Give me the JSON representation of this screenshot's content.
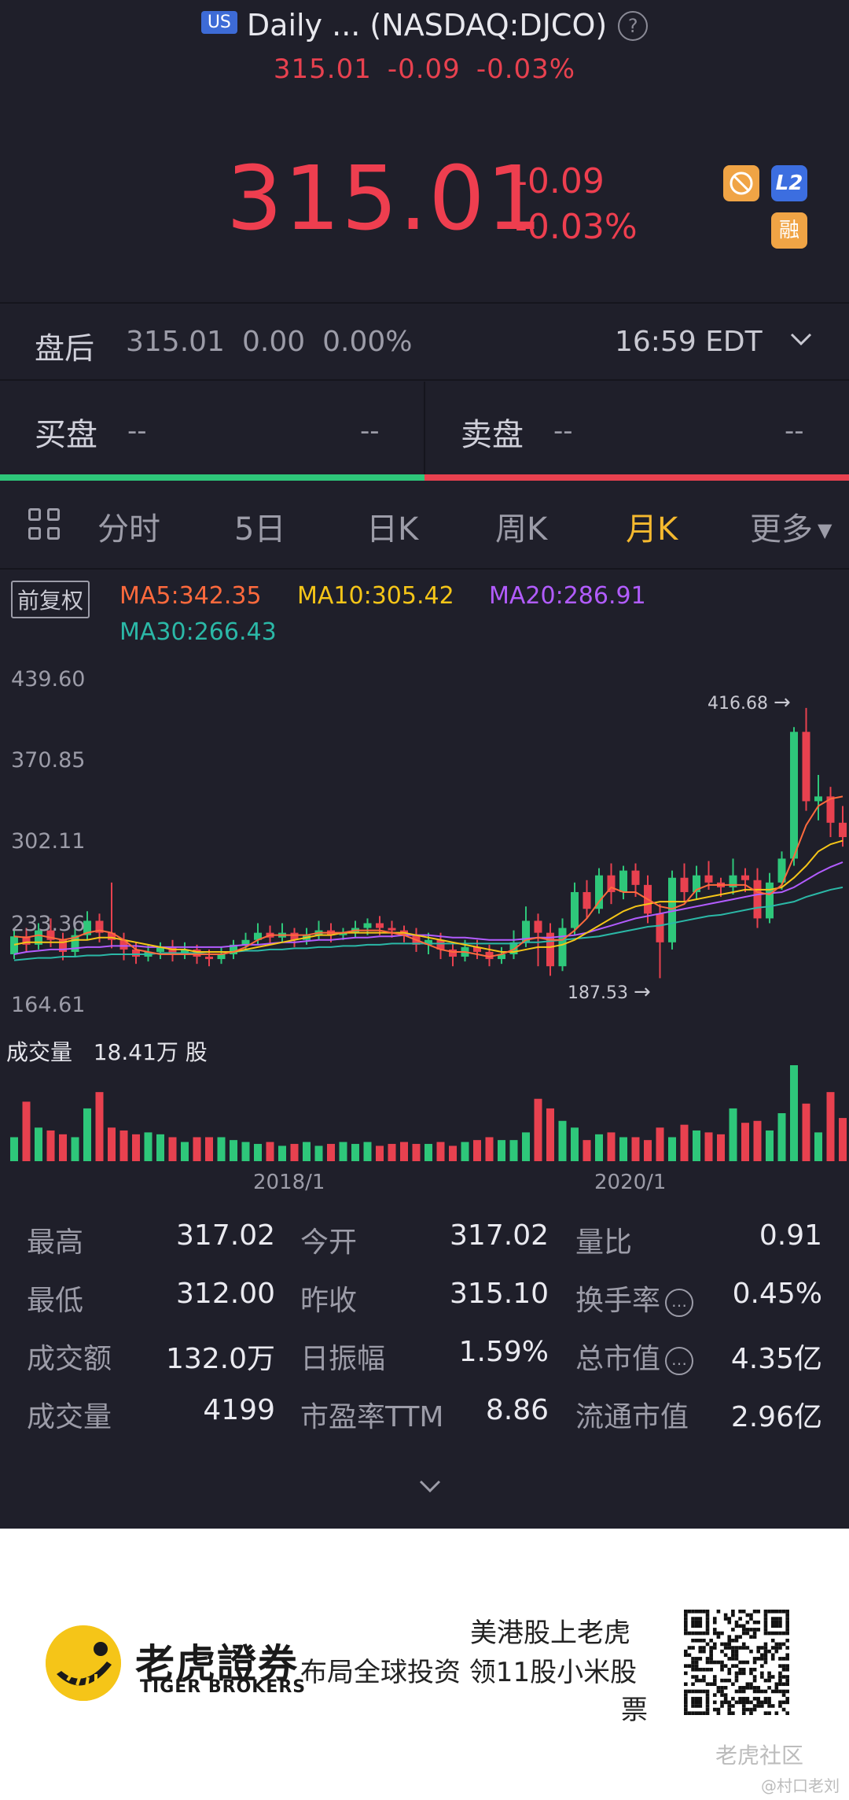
{
  "header": {
    "market_badge": "US",
    "title": "Daily ... (NASDAQ:DJCO)",
    "price": "315.01",
    "change": "-0.09",
    "change_pct": "-0.03%"
  },
  "quote": {
    "price": "315.01",
    "change": "-0.09",
    "change_pct": "-0.03%",
    "badges": {
      "l2": "L2",
      "margin": "融"
    }
  },
  "after_hours": {
    "label": "盘后",
    "price": "315.01",
    "change": "0.00",
    "change_pct": "0.00%",
    "time": "16:59 EDT"
  },
  "order_book": {
    "bid_label": "买盘",
    "bid_left": "--",
    "bid_right": "--",
    "ask_label": "卖盘",
    "ask_left": "--",
    "ask_right": "--"
  },
  "tabs": [
    "分时",
    "5日",
    "日K",
    "周K",
    "月K",
    "更多"
  ],
  "active_tab": "月K",
  "chart_controls": {
    "adjust_label": "前复权",
    "ma5": "MA5:342.35",
    "ma10": "MA10:305.42",
    "ma20": "MA20:286.91",
    "ma30": "MA30:266.43"
  },
  "colors": {
    "up": "#e8414f",
    "down": "#2ec77a",
    "accent": "#f5b92f",
    "ma5": "#ff6a3d",
    "ma10": "#f5c518",
    "ma20": "#b25cff",
    "ma30": "#2bb8a7"
  },
  "volume": {
    "label": "成交量",
    "value": "18.41万 股"
  },
  "chart_data": {
    "type": "candlestick",
    "y_ticks": [
      "439.60",
      "370.85",
      "302.11",
      "233.36",
      "164.61"
    ],
    "ylim": [
      164.61,
      439.6
    ],
    "x_ticks": [
      "2018/1",
      "2020/1"
    ],
    "high_marker": "416.68",
    "low_marker": "187.53",
    "candles": [
      [
        210,
        225,
        206,
        230
      ],
      [
        225,
        218,
        212,
        232
      ],
      [
        218,
        230,
        214,
        236
      ],
      [
        230,
        222,
        216,
        240
      ],
      [
        222,
        212,
        205,
        228
      ],
      [
        212,
        226,
        208,
        232
      ],
      [
        226,
        238,
        222,
        246
      ],
      [
        238,
        228,
        220,
        244
      ],
      [
        228,
        222,
        215,
        270
      ],
      [
        222,
        214,
        205,
        228
      ],
      [
        214,
        208,
        202,
        220
      ],
      [
        208,
        212,
        204,
        218
      ],
      [
        212,
        216,
        206,
        220
      ],
      [
        216,
        210,
        204,
        222
      ],
      [
        210,
        214,
        206,
        220
      ],
      [
        214,
        208,
        202,
        218
      ],
      [
        208,
        206,
        200,
        214
      ],
      [
        206,
        210,
        202,
        216
      ],
      [
        210,
        218,
        206,
        222
      ],
      [
        218,
        222,
        214,
        228
      ],
      [
        222,
        228,
        218,
        236
      ],
      [
        228,
        224,
        218,
        234
      ],
      [
        224,
        228,
        220,
        236
      ],
      [
        228,
        222,
        216,
        232
      ],
      [
        222,
        226,
        218,
        232
      ],
      [
        226,
        230,
        222,
        238
      ],
      [
        230,
        226,
        220,
        236
      ],
      [
        226,
        228,
        222,
        232
      ],
      [
        228,
        232,
        224,
        238
      ],
      [
        232,
        236,
        226,
        240
      ],
      [
        236,
        232,
        226,
        242
      ],
      [
        232,
        230,
        224,
        238
      ],
      [
        230,
        226,
        220,
        234
      ],
      [
        226,
        218,
        212,
        232
      ],
      [
        218,
        222,
        210,
        228
      ],
      [
        222,
        214,
        206,
        228
      ],
      [
        214,
        208,
        200,
        220
      ],
      [
        208,
        216,
        204,
        222
      ],
      [
        216,
        212,
        206,
        222
      ],
      [
        212,
        206,
        200,
        218
      ],
      [
        206,
        210,
        202,
        216
      ],
      [
        210,
        220,
        206,
        230
      ],
      [
        220,
        238,
        216,
        250
      ],
      [
        238,
        228,
        200,
        244
      ],
      [
        228,
        200,
        192,
        236
      ],
      [
        200,
        232,
        196,
        240
      ],
      [
        232,
        262,
        226,
        270
      ],
      [
        262,
        248,
        240,
        272
      ],
      [
        248,
        276,
        244,
        282
      ],
      [
        276,
        262,
        252,
        286
      ],
      [
        262,
        280,
        256,
        284
      ],
      [
        280,
        268,
        258,
        286
      ],
      [
        268,
        244,
        236,
        276
      ],
      [
        244,
        220,
        190,
        252
      ],
      [
        220,
        274,
        214,
        280
      ],
      [
        274,
        262,
        254,
        286
      ],
      [
        262,
        276,
        256,
        284
      ],
      [
        276,
        270,
        264,
        288
      ],
      [
        270,
        266,
        258,
        274
      ],
      [
        266,
        276,
        260,
        290
      ],
      [
        276,
        272,
        262,
        282
      ],
      [
        272,
        240,
        232,
        282
      ],
      [
        240,
        270,
        236,
        278
      ],
      [
        270,
        290,
        264,
        296
      ],
      [
        290,
        396,
        284,
        400
      ],
      [
        396,
        338,
        330,
        416
      ],
      [
        338,
        342,
        322,
        360
      ],
      [
        342,
        320,
        308,
        350
      ],
      [
        320,
        308,
        300,
        334
      ]
    ],
    "ma5": [
      225,
      224,
      226,
      224,
      222,
      224,
      228,
      230,
      228,
      222,
      214,
      212,
      210,
      210,
      210,
      210,
      210,
      210,
      212,
      216,
      222,
      226,
      226,
      226,
      226,
      228,
      228,
      228,
      230,
      230,
      230,
      228,
      226,
      222,
      218,
      214,
      212,
      212,
      210,
      208,
      210,
      214,
      222,
      224,
      222,
      222,
      230,
      240,
      254,
      266,
      262,
      262,
      256,
      250,
      248,
      252,
      264,
      268,
      268,
      268,
      268,
      262,
      260,
      268,
      292,
      318,
      334,
      340,
      342
    ],
    "ma10": [
      218,
      220,
      220,
      220,
      220,
      222,
      222,
      224,
      224,
      222,
      220,
      218,
      216,
      214,
      214,
      212,
      212,
      212,
      212,
      214,
      216,
      218,
      220,
      222,
      224,
      226,
      226,
      228,
      228,
      228,
      228,
      228,
      228,
      226,
      224,
      222,
      220,
      218,
      216,
      214,
      212,
      212,
      214,
      216,
      216,
      218,
      222,
      228,
      234,
      240,
      246,
      250,
      252,
      254,
      254,
      254,
      256,
      258,
      260,
      262,
      264,
      264,
      264,
      266,
      274,
      284,
      296,
      302,
      305
    ],
    "ma20": [
      210,
      212,
      213,
      214,
      214,
      215,
      216,
      216,
      217,
      217,
      217,
      216,
      216,
      216,
      216,
      216,
      216,
      216,
      217,
      218,
      218,
      219,
      220,
      220,
      221,
      222,
      222,
      223,
      224,
      224,
      225,
      225,
      226,
      226,
      226,
      225,
      224,
      224,
      223,
      222,
      222,
      222,
      223,
      224,
      224,
      225,
      226,
      228,
      231,
      234,
      237,
      240,
      242,
      244,
      246,
      248,
      250,
      252,
      254,
      256,
      258,
      260,
      261,
      262,
      266,
      272,
      278,
      283,
      287
    ],
    "ma30": [
      205,
      206,
      207,
      207,
      208,
      208,
      209,
      209,
      210,
      210,
      210,
      210,
      211,
      211,
      211,
      211,
      212,
      212,
      212,
      213,
      213,
      214,
      214,
      215,
      215,
      216,
      216,
      217,
      217,
      218,
      218,
      219,
      219,
      219,
      219,
      219,
      219,
      219,
      219,
      219,
      219,
      219,
      220,
      220,
      221,
      222,
      223,
      224,
      225,
      227,
      229,
      231,
      233,
      234,
      236,
      238,
      240,
      242,
      243,
      245,
      247,
      249,
      250,
      252,
      254,
      258,
      261,
      264,
      266
    ],
    "volumes": [
      0.25,
      0.62,
      0.35,
      0.32,
      0.28,
      0.25,
      0.55,
      0.72,
      0.35,
      0.32,
      0.28,
      0.3,
      0.28,
      0.25,
      0.2,
      0.25,
      0.25,
      0.25,
      0.22,
      0.2,
      0.18,
      0.2,
      0.16,
      0.18,
      0.2,
      0.16,
      0.18,
      0.2,
      0.18,
      0.2,
      0.16,
      0.18,
      0.2,
      0.18,
      0.18,
      0.2,
      0.16,
      0.2,
      0.22,
      0.25,
      0.22,
      0.22,
      0.3,
      0.65,
      0.55,
      0.42,
      0.35,
      0.22,
      0.28,
      0.3,
      0.25,
      0.25,
      0.22,
      0.35,
      0.25,
      0.38,
      0.32,
      0.3,
      0.28,
      0.55,
      0.4,
      0.42,
      0.32,
      0.5,
      1.0,
      0.6,
      0.3,
      0.72,
      0.45
    ]
  },
  "stats": [
    [
      {
        "k": "最高",
        "v": "317.02"
      },
      {
        "k": "今开",
        "v": "317.02"
      },
      {
        "k": "量比",
        "v": "0.91"
      }
    ],
    [
      {
        "k": "最低",
        "v": "312.00"
      },
      {
        "k": "昨收",
        "v": "315.10"
      },
      {
        "k": "换手率",
        "v": "0.45%"
      }
    ],
    [
      {
        "k": "成交额",
        "v": "132.0万"
      },
      {
        "k": "日振幅",
        "v": "1.59%"
      },
      {
        "k": "总市值",
        "v": "4.35亿"
      }
    ],
    [
      {
        "k": "成交量",
        "v": "4199"
      },
      {
        "k": "市盈率TTM",
        "v": "8.86"
      },
      {
        "k": "流通市值",
        "v": "2.96亿"
      }
    ]
  ],
  "footer": {
    "brand_cn": "老虎證券",
    "brand_en": "TIGER BROKERS",
    "slogan_line1": "美港股上老虎",
    "slogan_line2": "布局全球投资 领11股小米股",
    "slogan_line3": "票",
    "watermark": "老虎社区",
    "watermark_user": "@村口老刘"
  }
}
